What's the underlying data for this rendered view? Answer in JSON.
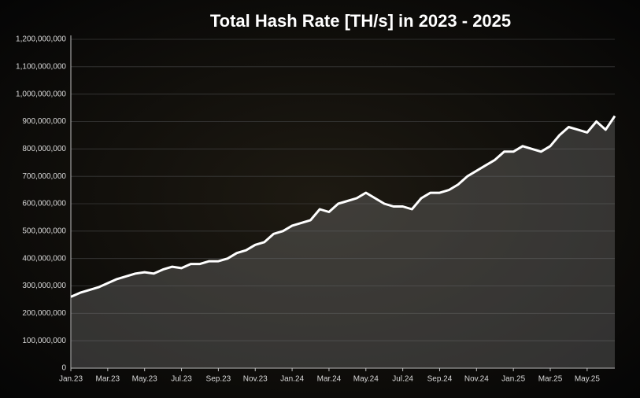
{
  "chart_data": {
    "type": "area",
    "title": "Total Hash Rate [TH/s] in 2023 - 2025",
    "categories": [
      "Jan.23",
      null,
      null,
      null,
      "Mar.23",
      null,
      null,
      null,
      "May.23",
      null,
      null,
      null,
      "Jul.23",
      null,
      null,
      null,
      "Sep.23",
      null,
      null,
      null,
      "Nov.23",
      null,
      null,
      null,
      "Jan.24",
      null,
      null,
      null,
      "Mar.24",
      null,
      null,
      null,
      "May.24",
      null,
      null,
      null,
      "Jul.24",
      null,
      null,
      null,
      "Sep.24",
      null,
      null,
      null,
      "Nov.24",
      null,
      null,
      null,
      "Jan.25",
      null,
      null,
      null,
      "Mar.25",
      null,
      null,
      null,
      "May.25",
      null,
      null,
      null
    ],
    "values": [
      260000000,
      275000000,
      285000000,
      295000000,
      310000000,
      325000000,
      335000000,
      345000000,
      350000000,
      345000000,
      360000000,
      370000000,
      365000000,
      380000000,
      380000000,
      390000000,
      390000000,
      400000000,
      420000000,
      430000000,
      450000000,
      460000000,
      490000000,
      500000000,
      520000000,
      530000000,
      540000000,
      580000000,
      570000000,
      600000000,
      610000000,
      620000000,
      640000000,
      620000000,
      600000000,
      590000000,
      590000000,
      580000000,
      620000000,
      640000000,
      640000000,
      650000000,
      670000000,
      700000000,
      720000000,
      740000000,
      760000000,
      790000000,
      790000000,
      810000000,
      800000000,
      790000000,
      810000000,
      850000000,
      880000000,
      870000000,
      860000000,
      900000000,
      870000000,
      920000000
    ],
    "color": "#ffffff",
    "ylim": [
      0,
      1200000000
    ],
    "yticks": [
      0,
      {
        "value": 100000000,
        "label": "100,000,000"
      },
      {
        "value": 200000000,
        "label": "200,000,000"
      },
      {
        "value": 300000000,
        "label": "300,000,000"
      },
      {
        "value": 400000000,
        "label": "400,000,000"
      },
      {
        "value": 500000000,
        "label": "500,000,000"
      },
      {
        "value": 600000000,
        "label": "600,000,000"
      },
      {
        "value": 700000000,
        "label": "700,000,000"
      },
      {
        "value": 800000000,
        "label": "800,000,000"
      },
      {
        "value": 900000000,
        "label": "900,000,000"
      },
      {
        "value": 1000000000,
        "label": "1,000,000,000"
      },
      {
        "value": 1100000000,
        "label": "1,100,000,000"
      },
      {
        "value": 1200000000,
        "label": "1,200,000,000"
      }
    ],
    "grid": true
  }
}
